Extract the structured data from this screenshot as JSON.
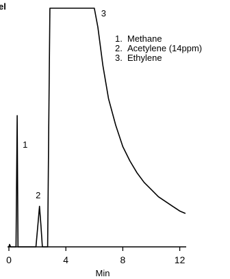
{
  "chart_data": {
    "type": "line",
    "title": "el",
    "xlabel": "Min",
    "ylabel": "",
    "xlim": [
      0,
      12.5
    ],
    "ylim": [
      0,
      100
    ],
    "x_ticks": [
      0,
      4,
      8,
      12
    ],
    "x_tick_labels": [
      "0",
      "4",
      "8",
      "12"
    ],
    "grid": false,
    "series": [
      {
        "x": [
          0,
          0.05,
          0.12,
          0.2,
          0.3,
          0.5,
          0.58,
          0.64,
          0.7,
          1.5,
          1.9,
          2.05,
          2.15,
          2.25,
          2.35,
          2.6,
          2.72,
          2.8,
          2.88,
          2.95,
          3.1,
          6.0,
          6.25,
          6.6,
          7.0,
          7.5,
          8.0,
          8.5,
          9.0,
          9.5,
          10.0,
          10.5,
          11.0,
          11.5,
          12.0,
          12.4
        ],
        "y": [
          0,
          1,
          0,
          0,
          0,
          0,
          55,
          0,
          0,
          0,
          0,
          10,
          17,
          9,
          0,
          0,
          0,
          50,
          100,
          100,
          100,
          100,
          92,
          76,
          62,
          51,
          42,
          36,
          31,
          27,
          24,
          21,
          19,
          17,
          15,
          14
        ]
      }
    ],
    "peak_labels": [
      {
        "text": "1",
        "x": 0.58
      },
      {
        "text": "2",
        "x": 2.15
      },
      {
        "text": "3",
        "x": 6.0
      }
    ],
    "legend": [
      {
        "num": "1.",
        "name": "Methane"
      },
      {
        "num": "2.",
        "name": "Acetylene (14ppm)"
      },
      {
        "num": "3.",
        "name": "Ethylene"
      }
    ]
  }
}
